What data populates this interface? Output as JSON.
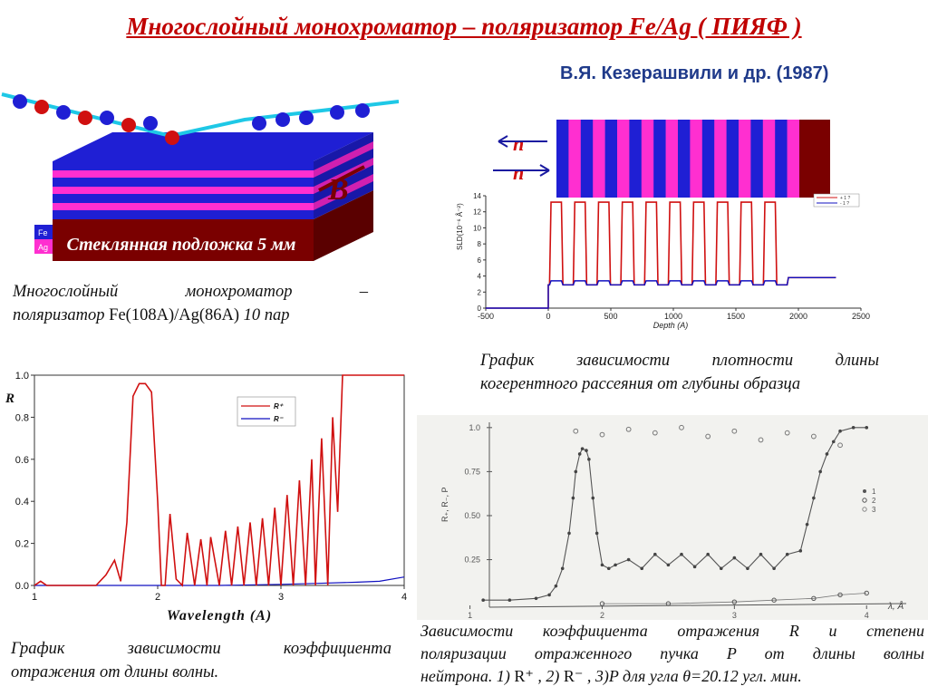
{
  "title": "Многослойный монохроматор – поляризатор Fe/Ag ( ПИЯФ )",
  "authors": "В.Я. Кезерашвили и др. (1987)",
  "structure": {
    "substrate_label": "Стеклянная подложка 5 мм",
    "field_label": "B",
    "legend_fe": "Fe",
    "legend_ag": "Ag",
    "colors": {
      "blue": "#1f1fd4",
      "magenta": "#ff2fd0",
      "substrate": "#7a0000",
      "arrow": "#1ec8e6"
    }
  },
  "caption_structure": {
    "line1": "Многослойный монохроматор –",
    "line2_a": "поляризатор ",
    "line2_b": "Fe(108A)/Ag(86A)",
    "line2_c": " 10 пар"
  },
  "density_chart": {
    "n_label": "n",
    "ylabel": "SLD(10⁻⁶ Å⁻²)",
    "xlabel": "Depth (A)",
    "legend": [
      "+ 1 ?",
      "- 1 ?"
    ],
    "layer_bar_colors": [
      "#1f1fd4",
      "#ff2fd0",
      "#7a0000"
    ]
  },
  "caption_density": {
    "line1": "График зависимости плотности длины",
    "line2": "когерентного рассеяния от глубины образца"
  },
  "reflect_chart": {
    "ylabel": "R",
    "xlabel": "Wavelength (A)",
    "legend": [
      "R⁺",
      "R⁻"
    ]
  },
  "caption_reflect": {
    "line1": "График зависимости коэффициента",
    "line2": "отражения от длины волны."
  },
  "exp_chart": {
    "xlabel": "λ, Å",
    "ylabel": "R₊, R₋, P",
    "legend": [
      "1",
      "2",
      "3"
    ]
  },
  "caption_exp": {
    "line1": "Зависимости коэффициента отражения R и степени",
    "line2": "поляризации отраженного пучка P от длины волны",
    "line3_a": "нейтрона.  1) ",
    "line3_b": "R⁺",
    "line3_c": " , 2) ",
    "line3_d": "R⁻",
    "line3_e": " , 3)P для угла θ=20.12 угл. мин."
  },
  "chart_data": [
    {
      "type": "line",
      "title": "",
      "xlabel": "Depth (A)",
      "ylabel": "SLD(10⁻⁶ Å⁻²)",
      "xlim": [
        -500,
        2500
      ],
      "ylim": [
        0,
        14
      ],
      "x_ticks": [
        -500,
        0,
        500,
        1000,
        1500,
        2000,
        2500
      ],
      "y_ticks": [
        0,
        2,
        4,
        6,
        8,
        10,
        12,
        14
      ],
      "series": [
        {
          "name": "+ 1 ?",
          "color": "#d01010",
          "description_values": {
            "high": 13.2,
            "low": 2.9,
            "periods": 10,
            "period_A": 194,
            "tail": 3.8
          }
        },
        {
          "name": "- 1 ?",
          "color": "#1010c0",
          "description_values": {
            "high": 3.4,
            "low": 2.9,
            "periods": 10,
            "tail": 3.8
          }
        }
      ]
    },
    {
      "type": "line",
      "title": "",
      "xlabel": "Wavelength (A)",
      "ylabel": "R",
      "xlim": [
        1,
        4
      ],
      "ylim": [
        0,
        1.0
      ],
      "x_ticks": [
        1,
        2,
        3,
        4
      ],
      "y_ticks": [
        0.0,
        0.2,
        0.4,
        0.6,
        0.8,
        1.0
      ],
      "series": [
        {
          "name": "R⁺",
          "color": "#d01010",
          "x": [
            1.0,
            1.05,
            1.1,
            1.15,
            1.5,
            1.58,
            1.65,
            1.7,
            1.75,
            1.8,
            1.85,
            1.9,
            1.95,
            2.0,
            2.03,
            2.06,
            2.1,
            2.15,
            2.2,
            2.24,
            2.3,
            2.35,
            2.4,
            2.43,
            2.5,
            2.55,
            2.6,
            2.65,
            2.7,
            2.75,
            2.8,
            2.85,
            2.9,
            2.95,
            3.0,
            3.05,
            3.1,
            3.15,
            3.2,
            3.25,
            3.28,
            3.33,
            3.38,
            3.42,
            3.46,
            3.5,
            3.53,
            3.55,
            3.6,
            3.7,
            4.0
          ],
          "y": [
            0.0,
            0.02,
            0.0,
            0.0,
            0.0,
            0.05,
            0.12,
            0.02,
            0.3,
            0.9,
            0.96,
            0.96,
            0.92,
            0.4,
            0.0,
            0.0,
            0.34,
            0.03,
            0.0,
            0.25,
            0.0,
            0.22,
            0.0,
            0.23,
            0.0,
            0.26,
            0.0,
            0.28,
            0.0,
            0.3,
            0.0,
            0.32,
            0.0,
            0.37,
            0.0,
            0.43,
            0.0,
            0.5,
            0.0,
            0.6,
            0.0,
            0.7,
            0.0,
            0.8,
            0.35,
            1.0,
            1.0,
            1.0,
            1.0,
            1.0,
            1.0
          ]
        },
        {
          "name": "R⁻",
          "color": "#1010c0",
          "x": [
            1.0,
            2.0,
            2.5,
            3.0,
            3.3,
            3.6,
            3.8,
            4.0
          ],
          "y": [
            0.0,
            0.0,
            0.0,
            0.005,
            0.01,
            0.015,
            0.02,
            0.04
          ]
        }
      ]
    },
    {
      "type": "scatter",
      "title": "",
      "xlabel": "λ, Å",
      "ylabel": "R₊, R₋, P",
      "xlim": [
        0.9,
        4.3
      ],
      "ylim": [
        -0.02,
        1.03
      ],
      "x_ticks": [
        1,
        2,
        3,
        4
      ],
      "y_ticks": [
        0.25,
        0.5,
        0.75,
        1.0
      ],
      "y_tick_labels": [
        "0.25",
        "0.50",
        "0.75",
        "1.0"
      ],
      "series": [
        {
          "name": "1",
          "x": [
            1.1,
            1.3,
            1.5,
            1.6,
            1.65,
            1.7,
            1.75,
            1.78,
            1.8,
            1.83,
            1.85,
            1.88,
            1.9,
            1.93,
            1.96,
            2.0,
            2.05,
            2.1,
            2.2,
            2.3,
            2.4,
            2.5,
            2.6,
            2.7,
            2.8,
            2.9,
            3.0,
            3.1,
            3.2,
            3.3,
            3.4,
            3.5,
            3.55,
            3.6,
            3.65,
            3.7,
            3.75,
            3.8,
            3.9,
            4.0
          ],
          "y": [
            0.02,
            0.02,
            0.03,
            0.05,
            0.1,
            0.2,
            0.4,
            0.6,
            0.75,
            0.85,
            0.88,
            0.87,
            0.82,
            0.6,
            0.4,
            0.22,
            0.2,
            0.22,
            0.25,
            0.2,
            0.28,
            0.22,
            0.28,
            0.21,
            0.28,
            0.2,
            0.26,
            0.2,
            0.28,
            0.2,
            0.28,
            0.3,
            0.45,
            0.6,
            0.75,
            0.85,
            0.92,
            0.98,
            1.0,
            1.0
          ]
        },
        {
          "name": "2",
          "x": [
            2.0,
            2.5,
            3.0,
            3.3,
            3.6,
            3.8,
            4.0
          ],
          "y": [
            0.0,
            0.0,
            0.01,
            0.02,
            0.03,
            0.05,
            0.06
          ]
        },
        {
          "name": "3",
          "x": [
            1.8,
            2.0,
            2.2,
            2.4,
            2.6,
            2.8,
            3.0,
            3.2,
            3.4,
            3.6,
            3.8
          ],
          "y": [
            0.98,
            0.96,
            0.99,
            0.97,
            1.0,
            0.95,
            0.98,
            0.93,
            0.97,
            0.95,
            0.9
          ]
        }
      ]
    }
  ]
}
